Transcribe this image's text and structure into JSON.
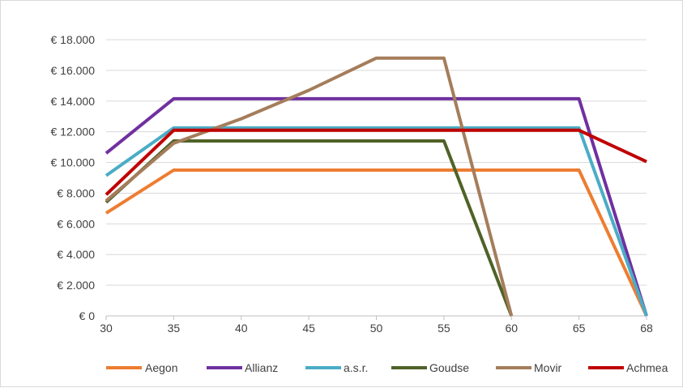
{
  "chart_data": {
    "type": "line",
    "x": [
      30,
      35,
      40,
      45,
      50,
      55,
      60,
      65,
      68
    ],
    "x_tick_labels": [
      "30",
      "35",
      "40",
      "45",
      "50",
      "55",
      "60",
      "65",
      "68"
    ],
    "ylim": [
      0,
      18000
    ],
    "y_tick_values": [
      0,
      2000,
      4000,
      6000,
      8000,
      10000,
      12000,
      14000,
      16000,
      18000
    ],
    "y_tick_labels": [
      "€ 0",
      "€ 2.000",
      "€ 4.000",
      "€ 6.000",
      "€ 8.000",
      "€ 10.000",
      "€ 12.000",
      "€ 14.000",
      "€ 16.000",
      "€ 18.000"
    ],
    "grid": "horizontal",
    "legend_position": "bottom",
    "series": [
      {
        "name": "Aegon",
        "color": "#ED7D31",
        "x": [
          30,
          35,
          65,
          68
        ],
        "values": [
          6700,
          9500,
          9500,
          0
        ]
      },
      {
        "name": "Allianz",
        "color": "#7030A0",
        "x": [
          30,
          35,
          65,
          68
        ],
        "values": [
          10600,
          14150,
          14150,
          0
        ]
      },
      {
        "name": "a.s.r.",
        "color": "#4BACC6",
        "x": [
          30,
          35,
          65,
          68
        ],
        "values": [
          9150,
          12250,
          12250,
          0
        ]
      },
      {
        "name": "Goudse",
        "color": "#4F6228",
        "x": [
          30,
          35,
          55,
          60
        ],
        "values": [
          7400,
          11400,
          11400,
          0
        ]
      },
      {
        "name": "Movir",
        "color": "#A57D5B",
        "x": [
          30,
          35,
          40,
          45,
          50,
          55,
          60
        ],
        "values": [
          7500,
          11250,
          12850,
          14700,
          16800,
          16800,
          0
        ]
      },
      {
        "name": "Achmea",
        "color": "#C00000",
        "x": [
          30,
          35,
          65,
          68
        ],
        "values": [
          7900,
          12100,
          12100,
          10050
        ]
      }
    ]
  }
}
